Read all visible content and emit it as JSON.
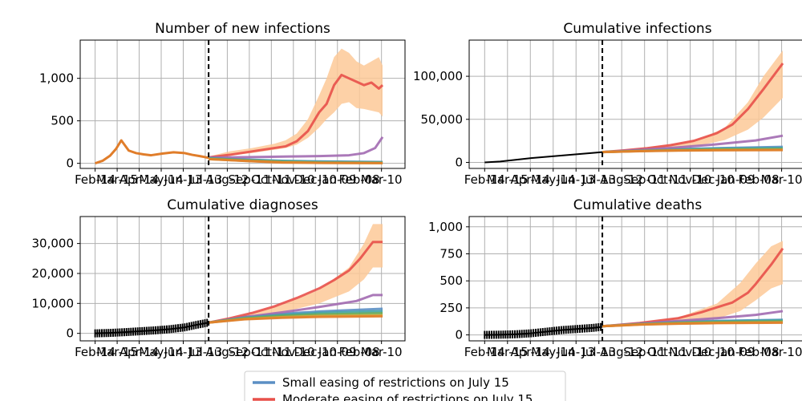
{
  "colors": {
    "small": "#5b8fc4",
    "moderate": "#e8504a",
    "purple": "#a26ab1",
    "teal": "#44a4a4",
    "green": "#6aaa52",
    "orange": "#e07d2a",
    "gold": "#d6a93a",
    "band": "#fdc998",
    "data": "#000000",
    "grid": "#b0b0b0"
  },
  "legend": {
    "entries": [
      {
        "label": "Small easing of restrictions on July 15",
        "color": "#5b8fc4"
      },
      {
        "label": "Moderate easing of restrictions on July 15",
        "color": "#e8504a"
      }
    ]
  },
  "chart_data": [
    {
      "type": "line",
      "title": "Number of new infections",
      "x_tick_labels": [
        "Feb-14",
        "Mar-15",
        "Apr-14",
        "May-14",
        "Jun-13",
        "Jul-13",
        "Aug-12",
        "Sep-11",
        "Oct-11",
        "Nov-10",
        "Dec-10",
        "Jan-09",
        "Feb-08",
        "Mar-10"
      ],
      "yticks": [
        0,
        500,
        1000
      ],
      "y_tick_labels": [
        "0",
        "500",
        "1,000"
      ],
      "ylim": [
        -60,
        1450
      ],
      "grid": true,
      "intervention_day": 152,
      "history": {
        "days": [
          0,
          10,
          20,
          28,
          35,
          45,
          55,
          65,
          75,
          90,
          105,
          120,
          130,
          140,
          152
        ],
        "values": [
          0,
          30,
          90,
          170,
          270,
          150,
          120,
          105,
          95,
          115,
          130,
          120,
          100,
          85,
          65
        ]
      },
      "band": {
        "days": [
          152,
          180,
          210,
          240,
          255,
          270,
          285,
          300,
          310,
          320,
          330,
          340,
          350,
          360,
          370,
          380,
          385
        ],
        "lower": [
          60,
          90,
          120,
          160,
          180,
          220,
          300,
          420,
          520,
          600,
          700,
          720,
          650,
          640,
          620,
          600,
          550
        ],
        "upper": [
          80,
          140,
          180,
          230,
          270,
          350,
          520,
          800,
          1000,
          1250,
          1350,
          1300,
          1200,
          1150,
          1200,
          1250,
          1150
        ]
      },
      "series": [
        {
          "name": "Small easing of restrictions on July 15",
          "color": "#5b8fc4",
          "width": 3,
          "days": [
            152,
            200,
            250,
            300,
            385
          ],
          "values": [
            65,
            45,
            30,
            22,
            15
          ]
        },
        {
          "name": "Moderate easing of restrictions on July 15",
          "color": "#e8504a",
          "width": 3,
          "days": [
            152,
            180,
            210,
            240,
            255,
            270,
            285,
            300,
            310,
            320,
            330,
            340,
            350,
            360,
            370,
            380,
            385
          ],
          "values": [
            70,
            100,
            140,
            180,
            200,
            260,
            380,
            600,
            700,
            920,
            1040,
            1000,
            960,
            920,
            950,
            880,
            920
          ]
        },
        {
          "name": "",
          "color": "#a26ab1",
          "width": 3,
          "days": [
            152,
            180,
            220,
            260,
            300,
            340,
            360,
            375,
            385
          ],
          "values": [
            70,
            70,
            75,
            80,
            85,
            95,
            120,
            180,
            310
          ]
        },
        {
          "name": "",
          "color": "#44a4a4",
          "width": 3,
          "days": [
            152,
            200,
            250,
            300,
            385
          ],
          "values": [
            60,
            40,
            25,
            18,
            12
          ]
        },
        {
          "name": "",
          "color": "#6aaa52",
          "width": 3,
          "days": [
            152,
            200,
            250,
            300,
            385
          ],
          "values": [
            55,
            35,
            18,
            10,
            6
          ]
        },
        {
          "name": "",
          "color": "#d6a93a",
          "width": 3,
          "days": [
            152,
            200,
            250,
            300,
            385
          ],
          "values": [
            50,
            30,
            12,
            6,
            3
          ]
        },
        {
          "name": "",
          "color": "#e07d2a",
          "width": 3,
          "days": [
            152,
            200,
            250,
            300,
            385
          ],
          "values": [
            50,
            28,
            10,
            5,
            2
          ]
        }
      ]
    },
    {
      "type": "line",
      "title": "Cumulative infections",
      "x_tick_labels": [
        "Feb-14",
        "Mar-15",
        "Apr-14",
        "May-14",
        "Jun-13",
        "Jul-13",
        "Aug-12",
        "Sep-11",
        "Oct-11",
        "Nov-10",
        "Dec-10",
        "Jan-09",
        "Feb-08",
        "Mar-10"
      ],
      "yticks": [
        0,
        50000,
        100000
      ],
      "y_tick_labels": [
        "0",
        "50,000",
        "100,000"
      ],
      "ylim": [
        -7000,
        142000
      ],
      "grid": true,
      "intervention_day": 152,
      "history": {
        "days": [
          0,
          20,
          40,
          60,
          80,
          100,
          120,
          140,
          152
        ],
        "values": [
          0,
          1000,
          3000,
          5000,
          6500,
          8000,
          9500,
          11000,
          12000
        ]
      },
      "band": {
        "days": [
          152,
          200,
          250,
          280,
          310,
          340,
          360,
          385
        ],
        "lower": [
          12000,
          14000,
          17000,
          20000,
          26000,
          38000,
          52000,
          75000
        ],
        "upper": [
          12000,
          16000,
          22000,
          28000,
          40000,
          70000,
          100000,
          130000
        ]
      },
      "series": [
        {
          "name": "Small easing of restrictions on July 15",
          "color": "#5b8fc4",
          "width": 3,
          "days": [
            152,
            200,
            250,
            300,
            385
          ],
          "values": [
            12000,
            14000,
            15500,
            16500,
            18000
          ]
        },
        {
          "name": "Moderate easing of restrictions on July 15",
          "color": "#e8504a",
          "width": 3,
          "days": [
            152,
            180,
            210,
            240,
            270,
            300,
            320,
            340,
            360,
            385
          ],
          "values": [
            12000,
            14000,
            16500,
            20000,
            25000,
            34000,
            44000,
            62000,
            85000,
            115000
          ]
        },
        {
          "name": "",
          "color": "#a26ab1",
          "width": 3,
          "days": [
            152,
            200,
            250,
            300,
            350,
            385
          ],
          "values": [
            12000,
            14500,
            17500,
            21000,
            25500,
            31000
          ]
        },
        {
          "name": "",
          "color": "#44a4a4",
          "width": 3,
          "days": [
            152,
            200,
            250,
            300,
            385
          ],
          "values": [
            12000,
            13500,
            14800,
            15800,
            16800
          ]
        },
        {
          "name": "",
          "color": "#6aaa52",
          "width": 3,
          "days": [
            152,
            200,
            250,
            300,
            385
          ],
          "values": [
            12000,
            13300,
            14300,
            15000,
            15500
          ]
        },
        {
          "name": "",
          "color": "#d6a93a",
          "width": 3,
          "days": [
            152,
            200,
            250,
            300,
            385
          ],
          "values": [
            12000,
            13100,
            13900,
            14400,
            14700
          ]
        },
        {
          "name": "",
          "color": "#e07d2a",
          "width": 3,
          "days": [
            152,
            200,
            250,
            300,
            385
          ],
          "values": [
            12000,
            13000,
            13700,
            14100,
            14300
          ]
        }
      ]
    },
    {
      "type": "line",
      "title": "Cumulative diagnoses",
      "x_tick_labels": [
        "Feb-14",
        "Mar-15",
        "Apr-14",
        "May-14",
        "Jun-13",
        "Jul-13",
        "Aug-12",
        "Sep-11",
        "Oct-11",
        "Nov-10",
        "Dec-10",
        "Jan-09",
        "Feb-08",
        "Mar-10"
      ],
      "yticks": [
        0,
        10000,
        20000,
        30000
      ],
      "y_tick_labels": [
        "0",
        "10,000",
        "20,000",
        "30,000"
      ],
      "ylim": [
        -2500,
        39000
      ],
      "grid": true,
      "intervention_day": 152,
      "history": {
        "days": [
          0,
          20,
          40,
          60,
          80,
          100,
          120,
          135,
          152
        ],
        "values": [
          0,
          150,
          400,
          700,
          1000,
          1400,
          2000,
          2800,
          3600
        ]
      },
      "band": {
        "days": [
          152,
          200,
          250,
          300,
          340,
          360,
          372,
          385
        ],
        "lower": [
          3600,
          5000,
          7000,
          10000,
          14000,
          18000,
          22000,
          22000
        ],
        "upper": [
          3600,
          6000,
          9500,
          14500,
          22000,
          30000,
          36500,
          36500
        ]
      },
      "series": [
        {
          "name": "Small easing of restrictions on July 15",
          "color": "#5b8fc4",
          "width": 3,
          "days": [
            152,
            200,
            250,
            300,
            385
          ],
          "values": [
            3600,
            5500,
            6500,
            7300,
            8200
          ]
        },
        {
          "name": "Moderate easing of restrictions on July 15",
          "color": "#e8504a",
          "width": 3,
          "days": [
            152,
            180,
            210,
            240,
            270,
            300,
            320,
            340,
            355,
            372,
            385
          ],
          "values": [
            3600,
            5000,
            6800,
            9000,
            11800,
            15000,
            17800,
            21000,
            25000,
            30500,
            30500
          ]
        },
        {
          "name": "",
          "color": "#a26ab1",
          "width": 3,
          "days": [
            152,
            200,
            250,
            300,
            350,
            372,
            385
          ],
          "values": [
            3600,
            5400,
            7000,
            8800,
            10800,
            12800,
            12800
          ]
        },
        {
          "name": "",
          "color": "#44a4a4",
          "width": 3,
          "days": [
            152,
            200,
            250,
            300,
            385
          ],
          "values": [
            3600,
            5200,
            6200,
            6800,
            7400
          ]
        },
        {
          "name": "",
          "color": "#6aaa52",
          "width": 3,
          "days": [
            152,
            200,
            250,
            300,
            385
          ],
          "values": [
            3600,
            5000,
            5800,
            6300,
            6700
          ]
        },
        {
          "name": "",
          "color": "#d6a93a",
          "width": 3,
          "days": [
            152,
            200,
            250,
            300,
            385
          ],
          "values": [
            3600,
            4800,
            5400,
            5800,
            6000
          ]
        },
        {
          "name": "",
          "color": "#e07d2a",
          "width": 3,
          "days": [
            152,
            200,
            250,
            300,
            385
          ],
          "values": [
            3600,
            4700,
            5200,
            5500,
            5700
          ]
        }
      ]
    },
    {
      "type": "line",
      "title": "Cumulative deaths",
      "x_tick_labels": [
        "Feb-14",
        "Mar-15",
        "Apr-14",
        "May-14",
        "Jun-13",
        "Jul-13",
        "Aug-12",
        "Sep-11",
        "Oct-11",
        "Nov-10",
        "Dec-10",
        "Jan-09",
        "Feb-08",
        "Mar-10"
      ],
      "yticks": [
        0,
        250,
        500,
        750,
        1000
      ],
      "y_tick_labels": [
        "0",
        "250",
        "500",
        "750",
        "1,000"
      ],
      "ylim": [
        -55,
        1095
      ],
      "grid": true,
      "intervention_day": 152,
      "history": {
        "days": [
          0,
          20,
          40,
          60,
          80,
          100,
          120,
          140,
          152
        ],
        "values": [
          0,
          2,
          6,
          15,
          30,
          45,
          55,
          65,
          75
        ]
      },
      "band": {
        "days": [
          152,
          200,
          250,
          300,
          330,
          350,
          370,
          385
        ],
        "lower": [
          75,
          95,
          115,
          150,
          220,
          320,
          430,
          470
        ],
        "upper": [
          75,
          115,
          160,
          290,
          480,
          660,
          820,
          870
        ]
      },
      "series": [
        {
          "name": "Small easing of restrictions on July 15",
          "color": "#5b8fc4",
          "width": 3,
          "days": [
            152,
            200,
            250,
            300,
            385
          ],
          "values": [
            80,
            105,
            120,
            130,
            140
          ]
        },
        {
          "name": "Moderate easing of restrictions on July 15",
          "color": "#e8504a",
          "width": 3,
          "days": [
            152,
            200,
            250,
            280,
            300,
            320,
            340,
            350,
            360,
            370,
            385
          ],
          "values": [
            80,
            110,
            155,
            210,
            255,
            300,
            390,
            470,
            560,
            650,
            800
          ]
        },
        {
          "name": "",
          "color": "#a26ab1",
          "width": 3,
          "days": [
            152,
            200,
            250,
            300,
            350,
            385
          ],
          "values": [
            80,
            105,
            130,
            155,
            185,
            220
          ]
        },
        {
          "name": "",
          "color": "#44a4a4",
          "width": 3,
          "days": [
            152,
            200,
            250,
            300,
            385
          ],
          "values": [
            80,
            100,
            115,
            125,
            135
          ]
        },
        {
          "name": "",
          "color": "#6aaa52",
          "width": 3,
          "days": [
            152,
            200,
            250,
            300,
            385
          ],
          "values": [
            80,
            98,
            110,
            118,
            125
          ]
        },
        {
          "name": "",
          "color": "#d6a93a",
          "width": 3,
          "days": [
            152,
            200,
            250,
            300,
            385
          ],
          "values": [
            80,
            96,
            106,
            112,
            117
          ]
        },
        {
          "name": "",
          "color": "#e07d2a",
          "width": 3,
          "days": [
            152,
            200,
            250,
            300,
            385
          ],
          "values": [
            80,
            95,
            104,
            109,
            113
          ]
        }
      ]
    }
  ]
}
